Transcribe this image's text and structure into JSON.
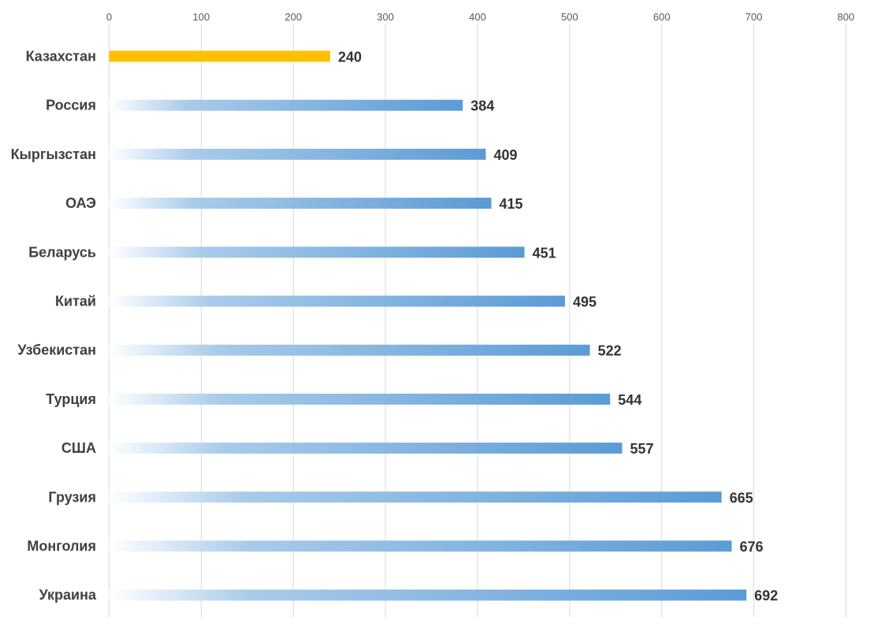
{
  "chart_data": {
    "type": "bar",
    "orientation": "horizontal",
    "categories": [
      "Казахстан",
      "Россия",
      "Кыргызстан",
      "ОАЭ",
      "Беларусь",
      "Китай",
      "Узбекистан",
      "Турция",
      "США",
      "Грузия",
      "Монголия",
      "Украина"
    ],
    "values": [
      240,
      384,
      409,
      415,
      451,
      495,
      522,
      544,
      557,
      665,
      676,
      692
    ],
    "xlim": [
      0,
      800
    ],
    "ticks": [
      0,
      100,
      200,
      300,
      400,
      500,
      600,
      700,
      800
    ],
    "tick_labels": [
      "0",
      "100",
      "200",
      "300",
      "400",
      "500",
      "600",
      "700",
      "800"
    ],
    "axis_position": "top",
    "grid": true,
    "legend": "none",
    "colors": {
      "highlight": "#FFC000",
      "bar": "#5B9BD5",
      "bar_fade": "#FFFFFF"
    },
    "highlight_category": "Казахстан"
  }
}
